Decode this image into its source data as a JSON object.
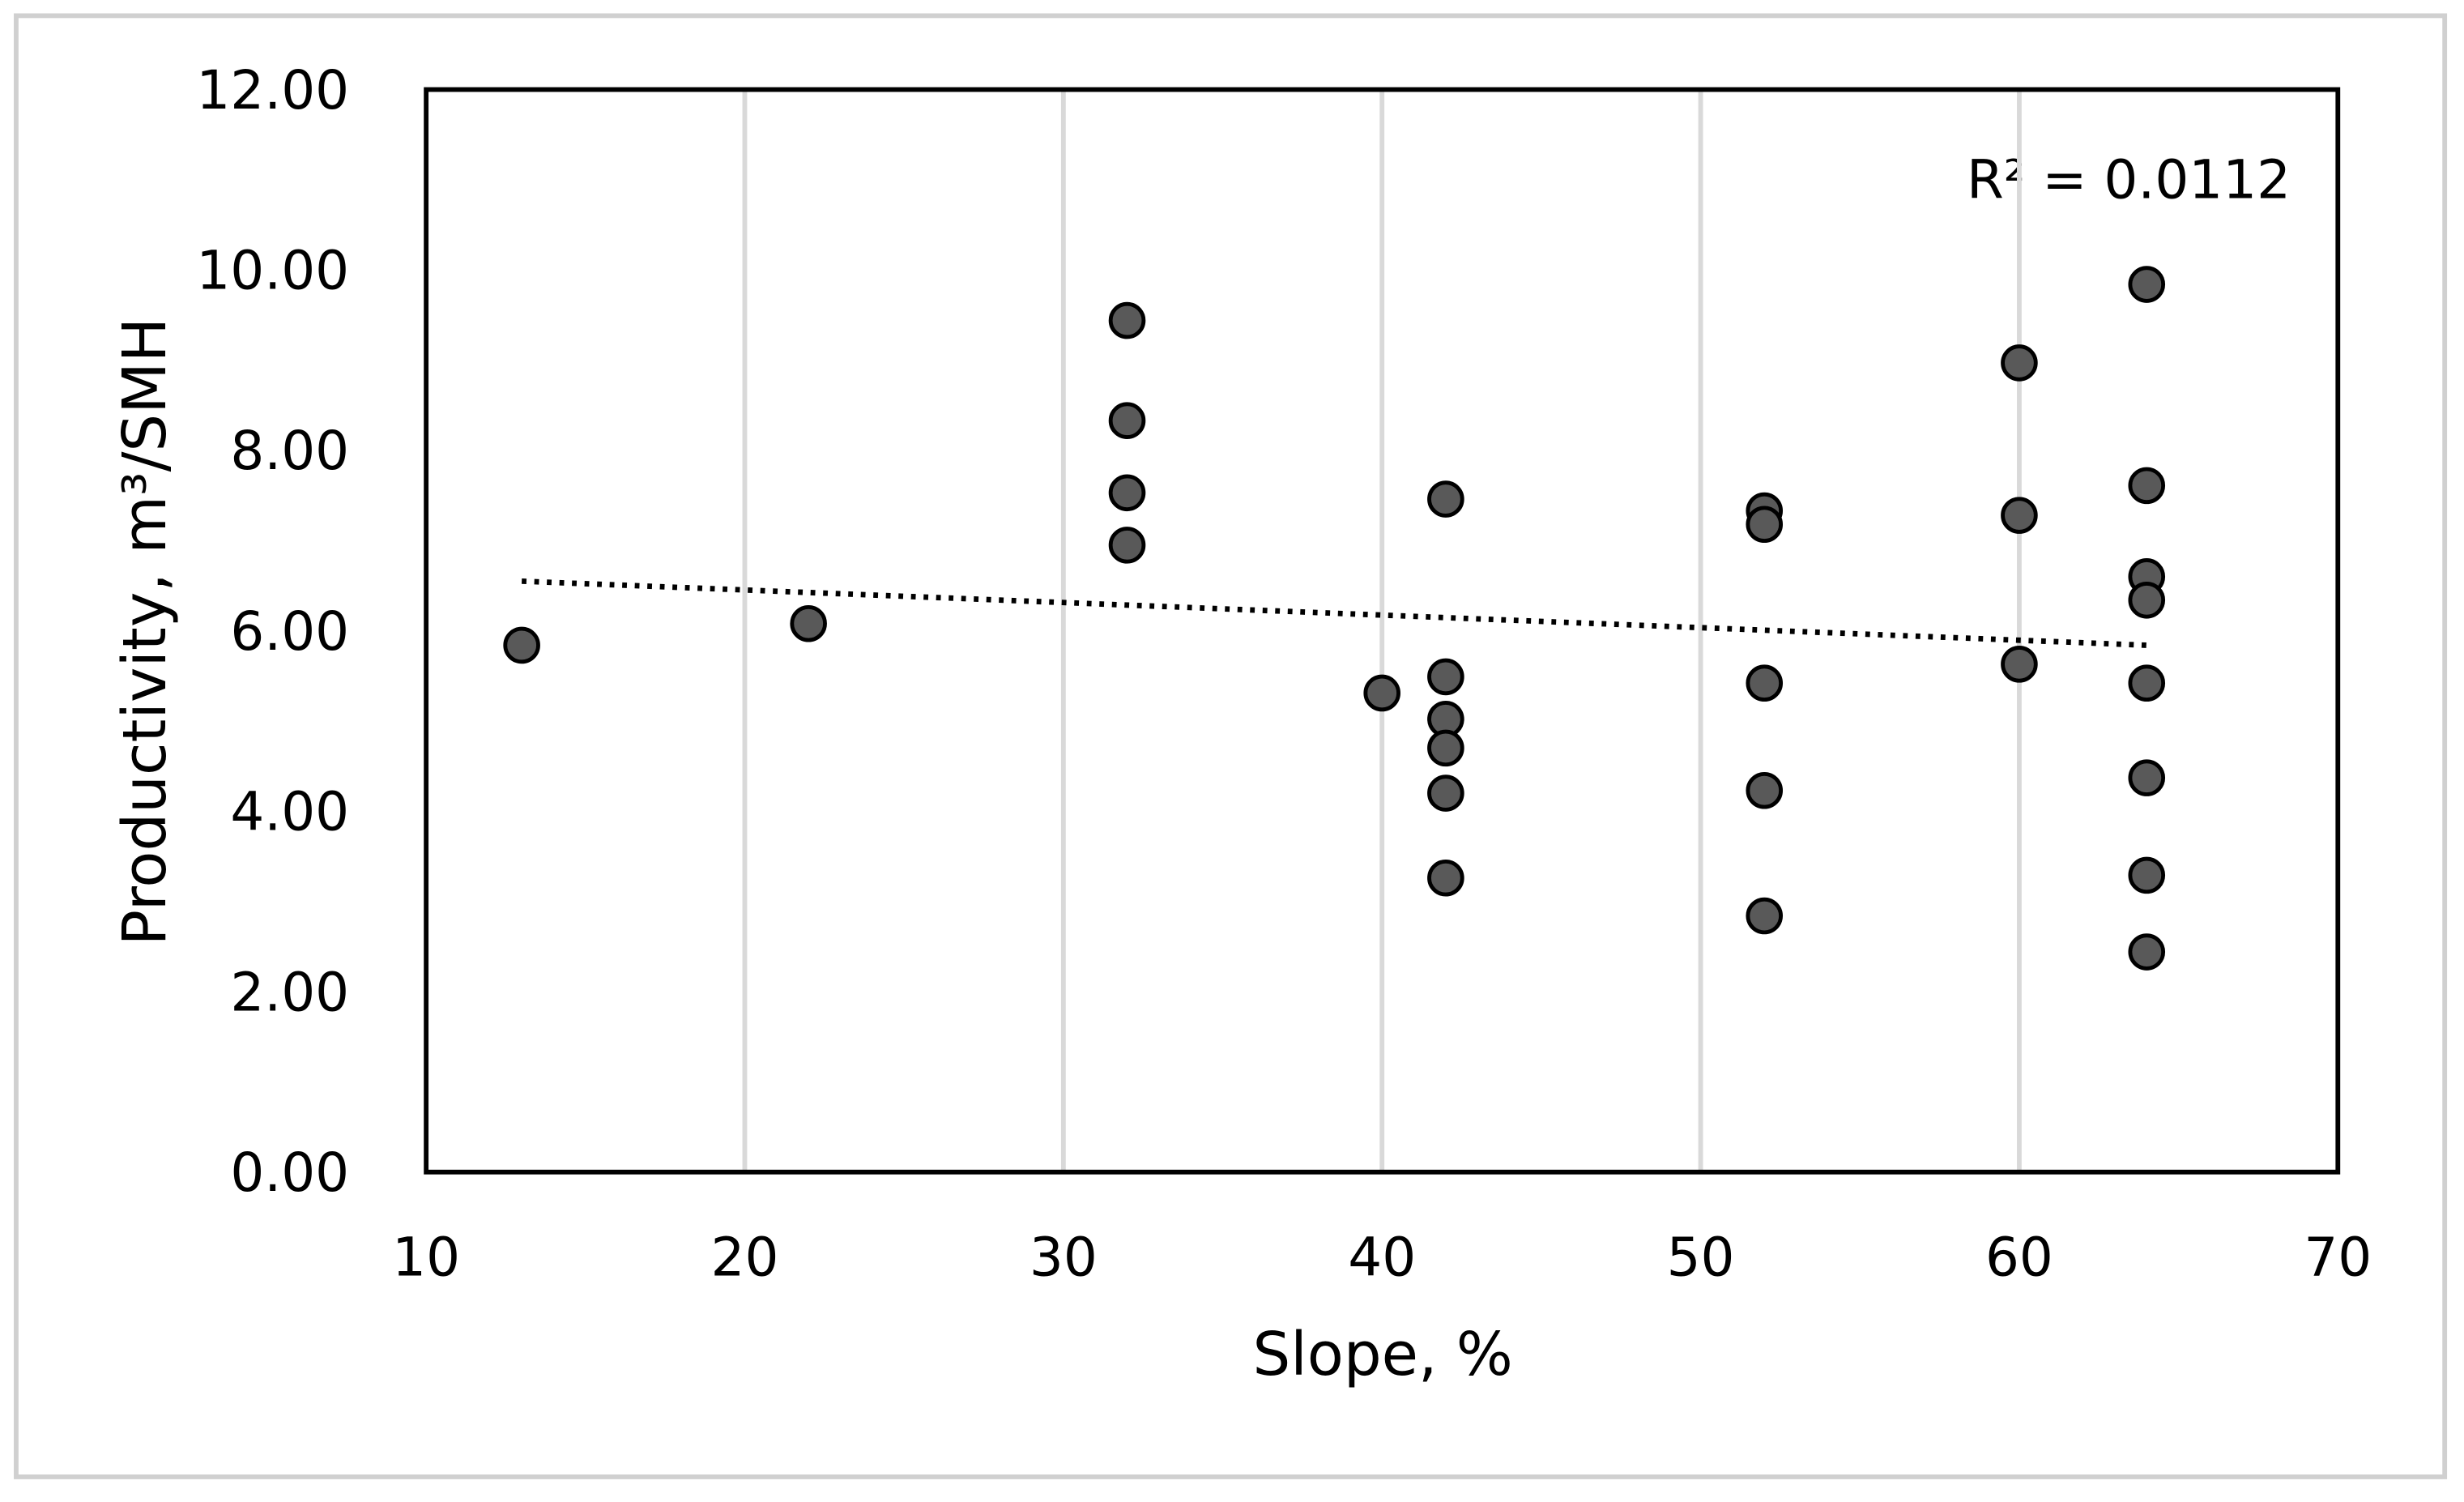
{
  "chart_data": {
    "type": "scatter",
    "x_label": "Slope, %",
    "y_label": "Productivity, m³/SMH",
    "annotation": "R² = 0.0112",
    "x": [
      13,
      22,
      32,
      32,
      32,
      32,
      40,
      42,
      42,
      42,
      42,
      42,
      42,
      52,
      52,
      52,
      52,
      52,
      60,
      60,
      60,
      64,
      64,
      64,
      64,
      64,
      64,
      64,
      64
    ],
    "values": [
      5.84,
      6.08,
      9.44,
      8.33,
      7.53,
      6.95,
      5.31,
      7.46,
      5.49,
      5.02,
      4.7,
      4.2,
      3.26,
      7.33,
      7.18,
      5.42,
      4.23,
      2.84,
      8.97,
      7.28,
      5.63,
      9.84,
      7.61,
      6.6,
      6.34,
      5.42,
      4.37,
      3.29,
      2.44
    ],
    "color": "#595959",
    "trendline": {
      "x": [
        13,
        64
      ],
      "values": [
        6.55,
        5.84
      ],
      "color": "#000000"
    },
    "xlim": [
      10,
      70
    ],
    "xticks": [
      10,
      20,
      30,
      40,
      50,
      60,
      70
    ],
    "ylim": [
      0,
      12
    ],
    "yticks": [
      {
        "value": 0,
        "label": "0.00"
      },
      {
        "value": 2,
        "label": "2.00"
      },
      {
        "value": 4,
        "label": "4.00"
      },
      {
        "value": 6,
        "label": "6.00"
      },
      {
        "value": 8,
        "label": "8.00"
      },
      {
        "value": 10,
        "label": "10.00"
      },
      {
        "value": 12,
        "label": "12.00"
      }
    ],
    "grid": "x"
  }
}
